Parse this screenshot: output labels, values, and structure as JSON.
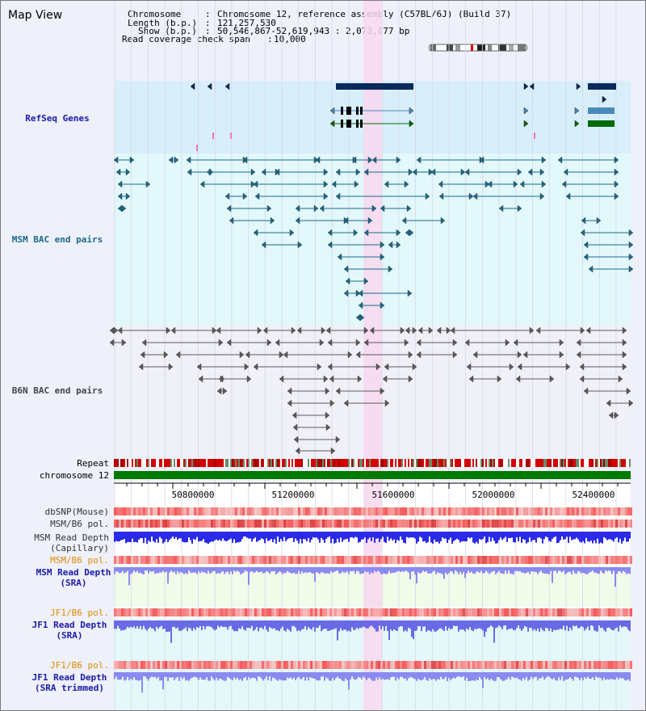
{
  "window": {
    "title": "Map View"
  },
  "info": {
    "chromosome_key": "Chromosome",
    "chromosome_value": "Chromosome 12, reference assembly (C57BL/6J) (Build 37)",
    "length_key": "Length (b.p.)",
    "length_value": "121,257,530",
    "show_key": "Show (b.p.)",
    "show_value": "50,546,867-52,619,943 : 2,073,077 bp",
    "coverage_key": "Read coverage check span",
    "coverage_value": "10,000"
  },
  "tracks": {
    "refseq": "RefSeq Genes",
    "msm_bac": "MSM BAC end pairs",
    "b6n_bac": "B6N BAC end pairs",
    "repeat": "Repeat",
    "chromosome": "chromosome 12",
    "dbsnp": "dbSNP(Mouse)",
    "msm_b6_pol": "MSM/B6 pol.",
    "msm_depth_cap_1": "MSM Read Depth",
    "msm_depth_cap_2": "(Capillary)",
    "msm_b6_pol_2": "MSM/B6 pol.",
    "msm_depth_sra_1": "MSM Read Depth",
    "msm_depth_sra_2": "(SRA)",
    "jf1_b6_pol": "JF1/B6 pol.",
    "jf1_depth_sra_1": "JF1 Read Depth",
    "jf1_depth_sra_2": "(SRA)",
    "jf1_b6_pol_2": "JF1/B6 pol.",
    "jf1_depth_trim_1": "JF1 Read Depth",
    "jf1_depth_trim_2": "(SRA trimmed)"
  },
  "axis": {
    "ticks": [
      "50800000",
      "51200000",
      "51600000",
      "52000000",
      "52400000"
    ]
  },
  "colors": {
    "refseq_bg": "#d8eefa",
    "msm_bg": "#e2f8fa",
    "b6n_bg": "#f0f0f8",
    "highlight": "#f8d8f0",
    "gene_dark": "#0a2a5c",
    "gene_mid": "#4a8ab8",
    "gene_green": "#006a00",
    "msm_line": "#1a6a8a",
    "b6n_line": "#5a5a5a",
    "chrom": "#007a00",
    "label_orange": "#e08a00",
    "label_blue": "#1a1aa6"
  }
}
